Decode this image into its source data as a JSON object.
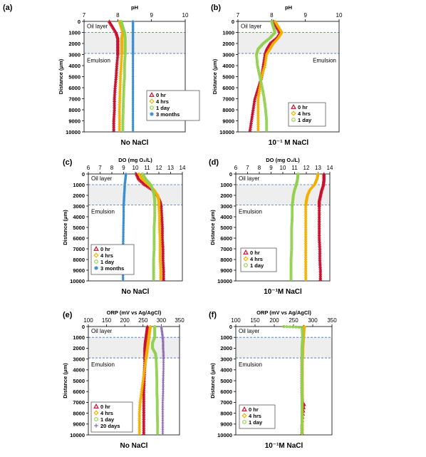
{
  "chart_data": [
    {
      "panel_label": "(a)",
      "type": "line",
      "xlabel": "pH",
      "ylabel": "Distance (μm)",
      "bottom_caption": "No NaCl",
      "xlim": [
        7,
        10
      ],
      "ylim": [
        0,
        10000
      ],
      "xticks": [
        "7",
        "8",
        "9",
        "10"
      ],
      "yticks": [
        "0",
        "1000",
        "2000",
        "3000",
        "4000",
        "5000",
        "6000",
        "7000",
        "8000",
        "9000",
        "10000"
      ],
      "region_labels": [
        "Oil layer",
        "Emulsion"
      ],
      "band": [
        1000,
        2900
      ],
      "series": [
        {
          "name": "0 hr",
          "color": "#c8102e",
          "marker": "triangle",
          "x": [
            7.75,
            7.85,
            7.95,
            8.0,
            8.0,
            8.0,
            8.0,
            7.97,
            7.95,
            7.92,
            7.9,
            7.9,
            7.88,
            7.88
          ],
          "y": [
            0,
            500,
            1000,
            1500,
            2000,
            2500,
            3000,
            4000,
            5000,
            6000,
            7000,
            8000,
            9000,
            10000
          ]
        },
        {
          "name": "4 hrs",
          "color": "#f2b000",
          "marker": "diamond",
          "x": [
            8.05,
            8.1,
            8.15,
            8.12,
            8.12,
            8.12,
            8.12,
            8.1,
            8.08,
            8.07,
            8.06,
            8.05,
            8.05,
            8.05
          ],
          "y": [
            0,
            500,
            1000,
            1500,
            2000,
            2500,
            3000,
            4000,
            5000,
            6000,
            7000,
            8000,
            9000,
            10000
          ]
        },
        {
          "name": "1 day",
          "color": "#92d050",
          "marker": "circle",
          "x": [
            8.1,
            8.15,
            8.2,
            8.22,
            8.22,
            8.22,
            8.22,
            8.2,
            8.2,
            8.18,
            8.17,
            8.16,
            8.15,
            8.15
          ],
          "y": [
            0,
            500,
            1000,
            1500,
            2000,
            2500,
            3000,
            4000,
            5000,
            6000,
            7000,
            8000,
            9000,
            10000
          ]
        },
        {
          "name": "3 months",
          "color": "#3b8ed0",
          "marker": "star",
          "x": [
            8.45,
            8.45,
            8.45,
            8.45,
            8.45,
            8.45,
            8.45,
            8.45,
            8.45,
            8.45,
            8.45,
            8.45,
            8.45,
            8.45
          ],
          "y": [
            0,
            500,
            1000,
            1500,
            2000,
            2500,
            3000,
            4000,
            5000,
            6000,
            7000,
            8000,
            9000,
            10000
          ]
        }
      ]
    },
    {
      "panel_label": "(b)",
      "type": "line",
      "xlabel": "pH",
      "ylabel": "Distance (μm)",
      "bottom_caption": "10⁻¹ M NaCl",
      "xlim": [
        7,
        10
      ],
      "ylim": [
        0,
        10000
      ],
      "xticks": [
        "7",
        "8",
        "9",
        "10"
      ],
      "yticks": [
        "0",
        "1000",
        "2000",
        "3000",
        "4000",
        "5000",
        "6000",
        "7000",
        "8000",
        "9000",
        "10000"
      ],
      "region_labels": [
        "Oil layer",
        "Emulsion"
      ],
      "band": [
        1000,
        2900
      ],
      "series": [
        {
          "name": "0 hr",
          "color": "#c8102e",
          "marker": "triangle",
          "x": [
            8.05,
            8.15,
            8.25,
            8.15,
            7.95,
            7.85,
            7.8,
            7.75,
            7.7,
            7.6,
            7.5,
            7.45,
            7.4,
            7.35
          ],
          "y": [
            0,
            500,
            1000,
            1500,
            2000,
            2500,
            3000,
            4000,
            5000,
            6000,
            7000,
            8000,
            9000,
            10000
          ]
        },
        {
          "name": "4 hrs",
          "color": "#f2b000",
          "marker": "diamond",
          "x": [
            8.1,
            8.2,
            8.3,
            8.2,
            8.05,
            7.95,
            7.85,
            7.8,
            7.7,
            7.65,
            7.6,
            7.6,
            7.6,
            7.6
          ],
          "y": [
            0,
            500,
            1000,
            1500,
            2000,
            2500,
            3000,
            4000,
            5000,
            6000,
            7000,
            8000,
            9000,
            10000
          ]
        },
        {
          "name": "1 day",
          "color": "#92d050",
          "marker": "circle",
          "x": [
            8.0,
            8.05,
            8.1,
            7.95,
            7.75,
            7.6,
            7.55,
            7.58,
            7.65,
            7.72,
            7.78,
            7.82,
            7.85,
            7.85
          ],
          "y": [
            0,
            500,
            1000,
            1500,
            2000,
            2500,
            3000,
            4000,
            5000,
            6000,
            7000,
            8000,
            9000,
            10000
          ]
        }
      ]
    },
    {
      "panel_label": "(c)",
      "type": "line",
      "xlabel": "DO (mg O₂/L)",
      "ylabel": "Distance (μm)",
      "bottom_caption": "No NaCl",
      "xlim": [
        6,
        14
      ],
      "ylim": [
        0,
        10000
      ],
      "xticks": [
        "6",
        "7",
        "8",
        "9",
        "10",
        "11",
        "12",
        "13",
        "14"
      ],
      "yticks": [
        "0",
        "1000",
        "2000",
        "3000",
        "4000",
        "5000",
        "6000",
        "7000",
        "8000",
        "9000",
        "10000"
      ],
      "region_labels": [
        "Oil layer",
        "Emulsion"
      ],
      "band": [
        1000,
        2900
      ],
      "series": [
        {
          "name": "0 hr",
          "color": "#c8102e",
          "marker": "triangle",
          "x": [
            10.1,
            10.3,
            10.8,
            11.5,
            11.9,
            12.1,
            12.2,
            12.25,
            12.3,
            12.3,
            12.35,
            12.35,
            12.4,
            12.4
          ],
          "y": [
            0,
            500,
            1000,
            1500,
            2000,
            2500,
            3000,
            4000,
            5000,
            6000,
            7000,
            8000,
            9000,
            10000
          ]
        },
        {
          "name": "4 hrs",
          "color": "#f2b000",
          "marker": "diamond",
          "x": [
            10.3,
            10.6,
            11.1,
            11.6,
            11.9,
            12.0,
            12.0,
            12.05,
            12.05,
            12.1,
            12.1,
            12.1,
            12.15,
            12.15
          ],
          "y": [
            0,
            500,
            1000,
            1500,
            2000,
            2500,
            3000,
            4000,
            5000,
            6000,
            7000,
            8000,
            9000,
            10000
          ]
        },
        {
          "name": "1 day",
          "color": "#92d050",
          "marker": "circle",
          "x": [
            10.6,
            10.9,
            11.3,
            11.5,
            11.6,
            11.65,
            11.65,
            11.65,
            11.6,
            11.6,
            11.6,
            11.55,
            11.55,
            11.55
          ],
          "y": [
            0,
            500,
            1000,
            1500,
            2000,
            2500,
            3000,
            4000,
            5000,
            6000,
            7000,
            8000,
            9000,
            10000
          ]
        },
        {
          "name": "3 months",
          "color": "#3b8ed0",
          "marker": "star",
          "x": [
            9.2,
            9.15,
            9.1,
            9.08,
            9.05,
            9.03,
            9.0,
            9.0,
            8.98,
            8.97,
            8.95,
            8.95,
            8.95,
            8.95
          ],
          "y": [
            0,
            500,
            1000,
            1500,
            2000,
            2500,
            3000,
            4000,
            5000,
            6000,
            7000,
            8000,
            9000,
            10000
          ]
        }
      ]
    },
    {
      "panel_label": "(d)",
      "type": "line",
      "xlabel": "DO (mg O₂/L)",
      "ylabel": "Distance (μm)",
      "bottom_caption": "10⁻¹M NaCl",
      "xlim": [
        6,
        14
      ],
      "ylim": [
        0,
        10000
      ],
      "xticks": [
        "6",
        "7",
        "8",
        "9",
        "10",
        "11",
        "12",
        "13",
        "14"
      ],
      "yticks": [
        "0",
        "1000",
        "2000",
        "3000",
        "4000",
        "5000",
        "6000",
        "7000",
        "8000",
        "9000",
        "10000"
      ],
      "region_labels": [
        "Oil layer",
        "Emulsion"
      ],
      "band": [
        1000,
        2900
      ],
      "series": [
        {
          "name": "0 hr",
          "color": "#c8102e",
          "marker": "triangle",
          "x": [
            13.5,
            13.5,
            13.45,
            13.3,
            13.2,
            13.1,
            13.1,
            13.1,
            13.1,
            13.1,
            13.15,
            13.15,
            13.2,
            13.2
          ],
          "y": [
            0,
            500,
            1000,
            1500,
            2000,
            2500,
            3000,
            4000,
            5000,
            6000,
            7000,
            8000,
            9000,
            10000
          ]
        },
        {
          "name": "4 hrs",
          "color": "#f2b000",
          "marker": "diamond",
          "x": [
            13.0,
            12.9,
            12.7,
            12.3,
            12.1,
            12.0,
            11.95,
            11.95,
            11.95,
            11.95,
            11.95,
            11.95,
            11.95,
            11.95
          ],
          "y": [
            0,
            500,
            1000,
            1500,
            2000,
            2500,
            3000,
            4000,
            5000,
            6000,
            7000,
            8000,
            9000,
            10000
          ]
        },
        {
          "name": "1 day",
          "color": "#92d050",
          "marker": "circle",
          "x": [
            11.3,
            11.25,
            11.15,
            11.0,
            10.9,
            10.85,
            10.8,
            10.8,
            10.75,
            10.75,
            10.75,
            10.7,
            10.7,
            10.7
          ],
          "y": [
            0,
            500,
            1000,
            1500,
            2000,
            2500,
            3000,
            4000,
            5000,
            6000,
            7000,
            8000,
            9000,
            10000
          ]
        }
      ]
    },
    {
      "panel_label": "(e)",
      "type": "line",
      "xlabel": "ORP (mV vs Ag/AgCl)",
      "ylabel": "Distance (μm)",
      "bottom_caption": "No NaCl",
      "xlim": [
        100,
        350
      ],
      "ylim": [
        0,
        10000
      ],
      "xticks": [
        "100",
        "150",
        "200",
        "250",
        "300",
        "350"
      ],
      "yticks": [
        "0",
        "1000",
        "2000",
        "3000",
        "4000",
        "5000",
        "6000",
        "7000",
        "8000",
        "9000",
        "10000"
      ],
      "region_labels": [
        "Oil layer",
        "Emulsion"
      ],
      "band": [
        1000,
        2900
      ],
      "series": [
        {
          "name": "0 hr",
          "color": "#c8102e",
          "marker": "triangle",
          "x": [
            262,
            260,
            258,
            256,
            255,
            255,
            255,
            254,
            253,
            252,
            252,
            252,
            252,
            252
          ],
          "y": [
            0,
            500,
            1000,
            1500,
            2000,
            2500,
            3000,
            4000,
            5000,
            6000,
            7000,
            8000,
            9000,
            10000
          ]
        },
        {
          "name": "4 hrs",
          "color": "#f2b000",
          "marker": "diamond",
          "x": [
            270,
            268,
            266,
            264,
            262,
            260,
            258,
            254,
            250,
            246,
            242,
            240,
            240,
            240
          ],
          "y": [
            0,
            500,
            1000,
            1500,
            2000,
            2500,
            3000,
            4000,
            5000,
            6000,
            7000,
            8000,
            9000,
            10000
          ]
        },
        {
          "name": "1 day",
          "color": "#92d050",
          "marker": "circle",
          "x": [
            282,
            282,
            282,
            276,
            276,
            284,
            286,
            287,
            288,
            288,
            289,
            289,
            290,
            290
          ],
          "y": [
            0,
            500,
            1000,
            1500,
            2000,
            2500,
            3000,
            4000,
            5000,
            6000,
            7000,
            8000,
            9000,
            10000
          ]
        },
        {
          "name": "20 days",
          "color": "#8e6bb0",
          "marker": "plus",
          "x": [
            300,
            302,
            304,
            305,
            305,
            306,
            306,
            306,
            305,
            305,
            304,
            304,
            304,
            304
          ],
          "y": [
            0,
            500,
            1000,
            1500,
            2000,
            2500,
            3000,
            4000,
            5000,
            6000,
            7000,
            8000,
            9000,
            10000
          ]
        }
      ]
    },
    {
      "panel_label": "(f)",
      "type": "line",
      "xlabel": "ORP (mV vs Ag/AgCl)",
      "ylabel": "Distance (μm)",
      "bottom_caption": "10⁻¹M NaCl",
      "xlim": [
        100,
        350
      ],
      "ylim": [
        0,
        10000
      ],
      "xticks": [
        "100",
        "150",
        "200",
        "250",
        "300",
        "350"
      ],
      "yticks": [
        "0",
        "1000",
        "2000",
        "3000",
        "4000",
        "5000",
        "6000",
        "7000",
        "8000",
        "9000",
        "10000"
      ],
      "region_labels": [
        "Oil layer",
        "Emulsion"
      ],
      "band": [
        1000,
        2900
      ],
      "series": [
        {
          "name": "0 hr",
          "color": "#c8102e",
          "marker": "triangle",
          "x": [
            276,
            276,
            275,
            274,
            273,
            273,
            272,
            272,
            272,
            272,
            273,
            278,
            272,
            272
          ],
          "y": [
            0,
            500,
            1000,
            1500,
            2000,
            2500,
            3000,
            4000,
            5000,
            6000,
            7000,
            7200,
            9000,
            10000
          ]
        },
        {
          "name": "4 hrs",
          "color": "#f2b000",
          "marker": "diamond",
          "x": [
            278,
            277,
            276,
            275,
            274,
            274,
            273,
            273,
            273,
            273,
            273,
            273,
            273,
            273
          ],
          "y": [
            0,
            500,
            1000,
            1500,
            2000,
            2500,
            3000,
            4000,
            5000,
            6000,
            7000,
            8000,
            9000,
            10000
          ]
        },
        {
          "name": "1 day",
          "color": "#92d050",
          "marker": "circle",
          "x": [
            225,
            272,
            274,
            273,
            272,
            272,
            272,
            272,
            272,
            272,
            272,
            272,
            272,
            272
          ],
          "y": [
            0,
            80,
            1000,
            1500,
            2000,
            2500,
            3000,
            4000,
            5000,
            6000,
            7000,
            8000,
            9000,
            10000
          ]
        }
      ]
    }
  ]
}
